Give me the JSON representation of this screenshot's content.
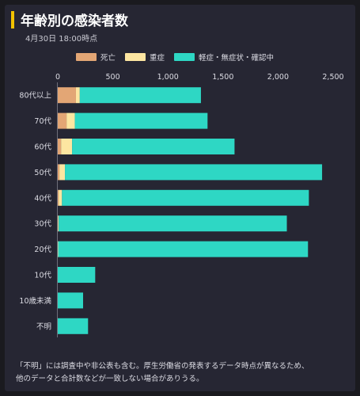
{
  "header": {
    "title": "年齢別の感染者数",
    "subtitle": "4月30日 18:00時点"
  },
  "note": {
    "line1": "「不明」には調査中や非公表も含む。厚生労働省の発表するデータ時点が異なるため、",
    "line2": "他のデータと合計数などが一致しない場合がありうる。"
  },
  "colors": {
    "死亡": "#e3a675",
    "重症": "#fde6a1",
    "軽症・無症状・確認中": "#2ed7c4",
    "background": "#262633",
    "accent": "#f2c200"
  },
  "chart_data": {
    "type": "bar",
    "orientation": "horizontal",
    "stacked": true,
    "categories": [
      "80代以上",
      "70代",
      "60代",
      "50代",
      "40代",
      "30代",
      "20代",
      "10代",
      "10歳未満",
      "不明"
    ],
    "series": [
      {
        "name": "死亡",
        "color": "#e3a675",
        "values": [
          165,
          80,
          30,
          15,
          8,
          3,
          0,
          0,
          0,
          0
        ]
      },
      {
        "name": "重症",
        "color": "#fde6a1",
        "values": [
          35,
          75,
          100,
          50,
          30,
          5,
          4,
          0,
          0,
          0
        ]
      },
      {
        "name": "軽症・無症状・確認中",
        "color": "#2ed7c4",
        "values": [
          1100,
          1205,
          1475,
          2335,
          2242,
          2072,
          2268,
          340,
          230,
          275
        ]
      }
    ],
    "xlim": [
      0,
      2500
    ],
    "xticks": [
      0,
      500,
      1000,
      1500,
      2000,
      2500
    ],
    "xtick_labels": [
      "0",
      "500",
      "1,000",
      "1,500",
      "2,000",
      "2,500"
    ],
    "legend": "top",
    "grid": false
  }
}
